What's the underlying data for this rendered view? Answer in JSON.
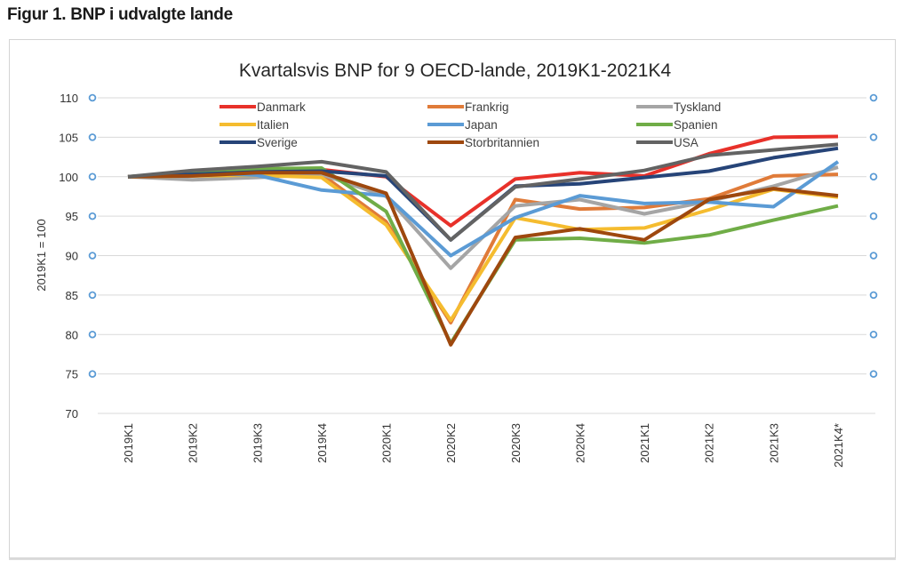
{
  "figure_title": "Figur 1. BNP i udvalgte lande",
  "chart_data": {
    "type": "line",
    "title": "Kvartalsvis BNP for 9 OECD-lande, 2019K1-2021K4",
    "xlabel": "",
    "ylabel": "2019K1 = 100",
    "ylim": [
      70,
      110
    ],
    "yticks": [
      70,
      75,
      80,
      85,
      90,
      95,
      100,
      105,
      110
    ],
    "grid": true,
    "legend_position": "top",
    "categories": [
      "2019K1",
      "2019K2",
      "2019K3",
      "2019K4",
      "2020K1",
      "2020K2",
      "2020K3",
      "2020K4",
      "2021K1",
      "2021K2",
      "2021K3",
      "2021K4*"
    ],
    "series": [
      {
        "name": "Danmark",
        "color": "#e8312a",
        "values": [
          100,
          100.4,
          100.7,
          100.9,
          100.0,
          93.8,
          99.7,
          100.5,
          100.1,
          102.9,
          105.0,
          105.1
        ]
      },
      {
        "name": "Frankrig",
        "color": "#e07b39",
        "values": [
          100,
          100.2,
          100.5,
          100.3,
          94.3,
          81.5,
          97.1,
          95.9,
          96.1,
          97.2,
          100.1,
          100.3
        ]
      },
      {
        "name": "Tyskland",
        "color": "#a5a5a5",
        "values": [
          100,
          99.6,
          99.9,
          100.3,
          97.5,
          88.4,
          96.3,
          97.1,
          95.3,
          96.9,
          98.8,
          101.2
        ]
      },
      {
        "name": "Italien",
        "color": "#f5bc2f",
        "values": [
          100,
          100.1,
          100.2,
          99.9,
          93.9,
          81.8,
          94.8,
          93.3,
          93.5,
          95.8,
          98.4,
          97.4
        ]
      },
      {
        "name": "Japan",
        "color": "#5b9bd5",
        "values": [
          100,
          100.5,
          100.2,
          98.3,
          97.6,
          90.0,
          94.8,
          97.6,
          96.6,
          96.8,
          96.2,
          101.9
        ]
      },
      {
        "name": "Spanien",
        "color": "#70ad47",
        "values": [
          100,
          100.6,
          101.0,
          101.1,
          95.6,
          78.9,
          92.0,
          92.2,
          91.6,
          92.6,
          94.5,
          96.3
        ]
      },
      {
        "name": "Sverige",
        "color": "#264478",
        "values": [
          100,
          100.3,
          100.6,
          100.7,
          100.1,
          92.0,
          98.8,
          99.1,
          99.9,
          100.7,
          102.4,
          103.6
        ]
      },
      {
        "name": "Storbritannien",
        "color": "#9e480e",
        "values": [
          100,
          100.1,
          100.5,
          100.5,
          97.9,
          78.7,
          92.3,
          93.4,
          92.0,
          97.1,
          98.5,
          97.6
        ]
      },
      {
        "name": "USA",
        "color": "#636363",
        "values": [
          100,
          100.8,
          101.3,
          101.9,
          100.6,
          92.0,
          98.7,
          99.7,
          100.8,
          102.7,
          103.4,
          104.1
        ]
      }
    ]
  }
}
